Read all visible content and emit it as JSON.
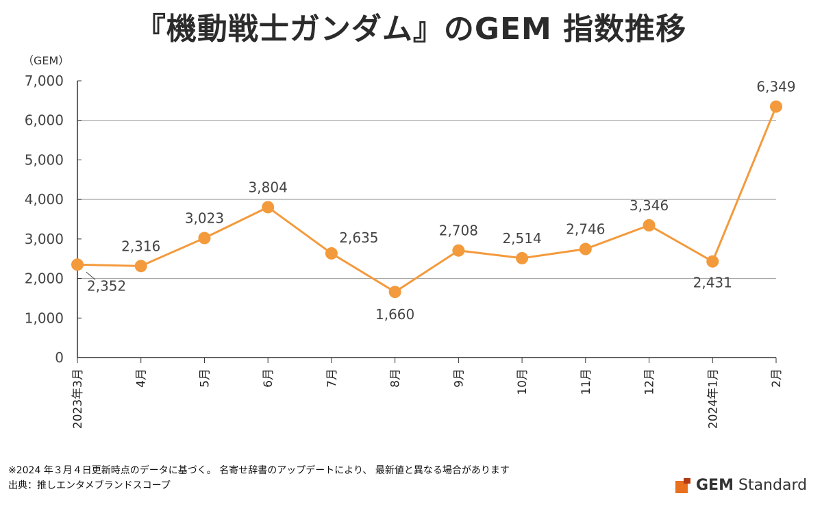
{
  "title": "『機動戦士ガンダム』のGEM 指数推移",
  "chart_data": {
    "type": "line",
    "title": "『機動戦士ガンダム』のGEM 指数推移",
    "ylabel": "（GEM）",
    "xlabel": "",
    "ylim": [
      0,
      7000
    ],
    "yticks": [
      0,
      1000,
      2000,
      3000,
      4000,
      5000,
      6000,
      7000
    ],
    "ytick_labels": [
      "0",
      "1,000",
      "2,000",
      "3,000",
      "4,000",
      "5,000",
      "6,000",
      "7,000"
    ],
    "categories": [
      "2023年3月",
      "4月",
      "5月",
      "6月",
      "7月",
      "8月",
      "9月",
      "10月",
      "11月",
      "12月",
      "2024年1月",
      "2月"
    ],
    "series": [
      {
        "name": "GEM指数",
        "values": [
          2352,
          2316,
          3023,
          3804,
          2635,
          1660,
          2708,
          2514,
          2746,
          3346,
          2431,
          6349
        ],
        "labels": [
          "2,352",
          "2,316",
          "3,023",
          "3,804",
          "2,635",
          "1,660",
          "2,708",
          "2,514",
          "2,746",
          "3,346",
          "2,431",
          "6,349"
        ],
        "color": "#F39A3C"
      }
    ],
    "grid": true,
    "gridlines_at": [
      2000,
      4000,
      6000
    ]
  },
  "footnote": {
    "line1": "※2024 年３月４日更新時点のデータに基づく。 名寄せ辞書のアップデートにより、 最新値と異なる場合があります",
    "line2": "出典：推しエンタメブランドスコープ"
  },
  "brand": {
    "bold": "GEM",
    "rest": " Standard",
    "color": "#E8701E"
  }
}
